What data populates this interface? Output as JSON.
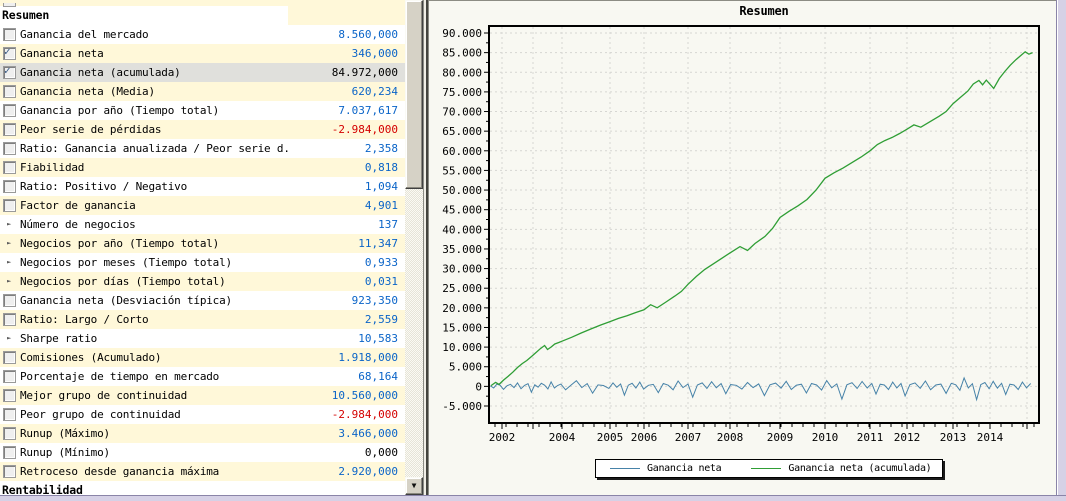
{
  "summary_panel": {
    "section_title": "Resumen",
    "footer_section_title": "Rentabilidad",
    "rows": [
      {
        "label": "Ganancia del mercado",
        "value": "8.560,000",
        "icon": "checkbox",
        "checked": false,
        "value_color": "positive",
        "selected": false
      },
      {
        "label": "Ganancia neta",
        "value": "346,000",
        "icon": "checkbox",
        "checked": true,
        "value_color": "positive",
        "selected": false
      },
      {
        "label": "Ganancia neta (acumulada)",
        "value": "84.972,000",
        "icon": "checkbox",
        "checked": true,
        "value_color": "neutral",
        "selected": true
      },
      {
        "label": "Ganancia neta (Media)",
        "value": "620,234",
        "icon": "checkbox",
        "checked": false,
        "value_color": "positive",
        "selected": false
      },
      {
        "label": "Ganancia por año (Tiempo total)",
        "value": "7.037,617",
        "icon": "checkbox",
        "checked": false,
        "value_color": "positive",
        "selected": false
      },
      {
        "label": "Peor serie de pérdidas",
        "value": "-2.984,000",
        "icon": "checkbox",
        "checked": false,
        "value_color": "negative",
        "selected": false
      },
      {
        "label": "Ratio: Ganancia anualizada / Peor serie d...",
        "value": "2,358",
        "icon": "checkbox",
        "checked": false,
        "value_color": "positive",
        "selected": false
      },
      {
        "label": "Fiabilidad",
        "value": "0,818",
        "icon": "checkbox",
        "checked": false,
        "value_color": "positive",
        "selected": false
      },
      {
        "label": "Ratio: Positivo / Negativo",
        "value": "1,094",
        "icon": "checkbox",
        "checked": false,
        "value_color": "positive",
        "selected": false
      },
      {
        "label": "Factor de ganancia",
        "value": "4,901",
        "icon": "checkbox",
        "checked": false,
        "value_color": "positive",
        "selected": false
      },
      {
        "label": "Número de negocios",
        "value": "137",
        "icon": "arrow",
        "checked": false,
        "value_color": "positive",
        "selected": false
      },
      {
        "label": "Negocios por año (Tiempo total)",
        "value": "11,347",
        "icon": "arrow",
        "checked": false,
        "value_color": "positive",
        "selected": false
      },
      {
        "label": "Negocios por meses (Tiempo total)",
        "value": "0,933",
        "icon": "arrow",
        "checked": false,
        "value_color": "positive",
        "selected": false
      },
      {
        "label": "Negocios por días (Tiempo total)",
        "value": "0,031",
        "icon": "arrow",
        "checked": false,
        "value_color": "positive",
        "selected": false
      },
      {
        "label": "Ganancia neta (Desviación típica)",
        "value": "923,350",
        "icon": "checkbox",
        "checked": false,
        "value_color": "positive",
        "selected": false
      },
      {
        "label": "Ratio: Largo / Corto",
        "value": "2,559",
        "icon": "checkbox",
        "checked": false,
        "value_color": "positive",
        "selected": false
      },
      {
        "label": "Sharpe ratio",
        "value": "10,583",
        "icon": "arrow",
        "checked": false,
        "value_color": "positive",
        "selected": false
      },
      {
        "label": "Comisiones (Acumulado)",
        "value": "1.918,000",
        "icon": "checkbox",
        "checked": false,
        "value_color": "positive",
        "selected": false
      },
      {
        "label": "Porcentaje de tiempo en mercado",
        "value": "68,164",
        "icon": "checkbox",
        "checked": false,
        "value_color": "positive",
        "selected": false
      },
      {
        "label": "Mejor grupo de continuidad",
        "value": "10.560,000",
        "icon": "checkbox",
        "checked": false,
        "value_color": "positive",
        "selected": false
      },
      {
        "label": "Peor grupo de continuidad",
        "value": "-2.984,000",
        "icon": "checkbox",
        "checked": false,
        "value_color": "negative",
        "selected": false
      },
      {
        "label": "Runup (Máximo)",
        "value": "3.466,000",
        "icon": "checkbox",
        "checked": false,
        "value_color": "positive",
        "selected": false
      },
      {
        "label": "Runup (Mínimo)",
        "value": "0,000",
        "icon": "checkbox",
        "checked": false,
        "value_color": "neutral",
        "selected": false
      },
      {
        "label": "Retroceso desde ganancia máxima",
        "value": "2.920,000",
        "icon": "checkbox",
        "checked": false,
        "value_color": "positive",
        "selected": false
      }
    ]
  },
  "icons": {
    "checked_glyph": "✓",
    "arrow_glyph": "►",
    "scroll_down_glyph": "▼"
  },
  "colors": {
    "positive_value": "#0A64C8",
    "negative_value": "#D40000",
    "row_alt_bg": "#FFF8D9",
    "selected_row_bg": "#E0E0DC",
    "net_line": "#4682A8",
    "cumulative_line": "#2F9E35"
  },
  "chart_data": {
    "type": "line",
    "title": "Resumen",
    "xlabel": "",
    "ylabel": "",
    "grid": "dashed",
    "legend_position": "bottom",
    "ylim": [
      -5000,
      90000
    ],
    "ytick_step": 5000,
    "x_tick_labels": [
      2002,
      2004,
      2005,
      2006,
      2007,
      2008,
      2009,
      2010,
      2011,
      2012,
      2013,
      2014
    ],
    "series": [
      {
        "name": "Ganancia neta",
        "color": "#4682A8",
        "x_start": 2001.6,
        "x_end": 2015.1,
        "values": [
          150,
          -420,
          580,
          260,
          -780,
          140,
          520,
          -310,
          880,
          -590,
          240,
          680,
          -1480,
          390,
          -210,
          790,
          310,
          -680,
          1150,
          -420,
          210,
          590,
          -880,
          320,
          1450,
          -310,
          700,
          -1750,
          380,
          210,
          -520,
          880,
          -230,
          610,
          -2250,
          310,
          790,
          -410,
          1080,
          -690,
          260,
          510,
          -1580,
          720,
          310,
          -880,
          1380,
          -320,
          610,
          -2750,
          340,
          890,
          -510,
          1180,
          -360,
          700,
          -1880,
          440,
          260,
          -700,
          990,
          -310,
          640,
          -2350,
          410,
          840,
          -450,
          1280,
          -790,
          310,
          540,
          -1680,
          740,
          340,
          -930,
          1480,
          -360,
          640,
          -3250,
          410,
          930,
          -540,
          1230,
          -410,
          740,
          -1980,
          540,
          340,
          -790,
          1080,
          -410,
          740,
          -2450,
          440,
          890,
          -490,
          1380,
          -840,
          340,
          590,
          -1780,
          790,
          390,
          -990,
          2150,
          -410,
          690,
          -3380,
          440,
          980,
          -590,
          1280,
          -440,
          790,
          -2080,
          540,
          340,
          -790,
          1080,
          -390,
          740
        ]
      },
      {
        "name": "Ganancia neta (acumulada)",
        "color": "#2F9E35",
        "points": [
          [
            2001.62,
            200
          ],
          [
            2001.78,
            1000
          ],
          [
            2001.9,
            500
          ],
          [
            2002.05,
            1600
          ],
          [
            2002.2,
            2600
          ],
          [
            2002.35,
            3600
          ],
          [
            2002.5,
            4800
          ],
          [
            2002.65,
            5800
          ],
          [
            2002.8,
            6600
          ],
          [
            2002.95,
            7600
          ],
          [
            2003.1,
            8600
          ],
          [
            2003.25,
            9600
          ],
          [
            2003.4,
            10400
          ],
          [
            2003.5,
            9400
          ],
          [
            2003.62,
            10000
          ],
          [
            2003.75,
            10800
          ],
          [
            2003.9,
            11200
          ],
          [
            2004.0,
            11500
          ],
          [
            2004.2,
            12500
          ],
          [
            2004.4,
            13600
          ],
          [
            2004.6,
            14600
          ],
          [
            2004.8,
            15600
          ],
          [
            2005.0,
            16500
          ],
          [
            2005.25,
            17300
          ],
          [
            2005.5,
            18000
          ],
          [
            2005.75,
            18800
          ],
          [
            2006.0,
            19500
          ],
          [
            2006.15,
            20800
          ],
          [
            2006.3,
            20000
          ],
          [
            2006.5,
            21500
          ],
          [
            2006.7,
            23000
          ],
          [
            2006.85,
            24200
          ],
          [
            2007.0,
            26000
          ],
          [
            2007.2,
            28000
          ],
          [
            2007.4,
            29800
          ],
          [
            2007.6,
            31200
          ],
          [
            2007.8,
            32600
          ],
          [
            2008.0,
            34000
          ],
          [
            2008.2,
            35600
          ],
          [
            2008.35,
            34600
          ],
          [
            2008.5,
            36400
          ],
          [
            2008.7,
            38200
          ],
          [
            2008.85,
            40200
          ],
          [
            2009.0,
            43000
          ],
          [
            2009.2,
            44600
          ],
          [
            2009.4,
            46000
          ],
          [
            2009.6,
            47600
          ],
          [
            2009.8,
            50000
          ],
          [
            2010.0,
            53000
          ],
          [
            2010.2,
            54400
          ],
          [
            2010.4,
            55600
          ],
          [
            2010.6,
            57000
          ],
          [
            2010.8,
            58400
          ],
          [
            2011.0,
            60000
          ],
          [
            2011.2,
            61600
          ],
          [
            2011.4,
            62600
          ],
          [
            2011.6,
            63400
          ],
          [
            2011.8,
            64400
          ],
          [
            2012.0,
            65500
          ],
          [
            2012.15,
            66600
          ],
          [
            2012.3,
            66000
          ],
          [
            2012.5,
            67400
          ],
          [
            2012.7,
            68800
          ],
          [
            2012.85,
            70000
          ],
          [
            2013.0,
            72000
          ],
          [
            2013.2,
            73600
          ],
          [
            2013.4,
            75200
          ],
          [
            2013.55,
            77000
          ],
          [
            2013.7,
            77900
          ],
          [
            2013.8,
            76800
          ],
          [
            2013.9,
            78000
          ],
          [
            2014.1,
            75900
          ],
          [
            2014.25,
            78400
          ],
          [
            2014.4,
            80200
          ],
          [
            2014.55,
            81800
          ],
          [
            2014.7,
            83200
          ],
          [
            2014.85,
            84400
          ],
          [
            2014.95,
            85200
          ],
          [
            2015.05,
            84600
          ],
          [
            2015.15,
            85000
          ]
        ]
      }
    ]
  }
}
